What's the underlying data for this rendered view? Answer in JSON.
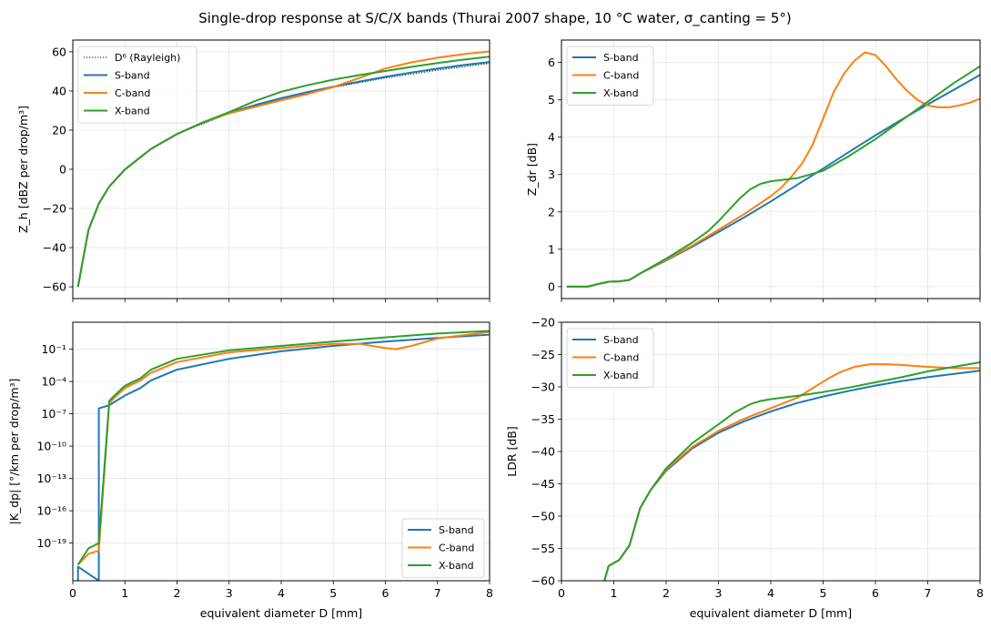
{
  "figure": {
    "title": "Single-drop response at S/C/X bands (Thurai 2007 shape, 10 °C water, σ_canting = 5°)"
  },
  "colors": {
    "S-band": "#1f77b4",
    "C-band": "#ff7f0e",
    "X-band": "#2ca02c",
    "rayleigh": "#000000",
    "grid": "#e6e6e6"
  },
  "chart_data": [
    {
      "id": "zh",
      "type": "line",
      "title": "",
      "xlabel": "",
      "ylabel": "Z_h [dBZ per drop/m³]",
      "xlim": [
        0,
        8
      ],
      "ylim": [
        -66,
        66
      ],
      "xticks": [
        0,
        1,
        2,
        3,
        4,
        5,
        6,
        7,
        8
      ],
      "xtick_labels_shown": false,
      "yticks": [
        -60,
        -40,
        -20,
        0,
        20,
        40,
        60
      ],
      "ytick_labels": [
        "−60",
        "−40",
        "−20",
        "0",
        "20",
        "40",
        "60"
      ],
      "grid": true,
      "legend": "top-left",
      "series": [
        {
          "name": "D⁶ (Rayleigh)",
          "style": "dotted",
          "x": [
            0.1,
            0.3,
            0.5,
            0.7,
            1,
            1.5,
            2,
            3,
            4,
            5,
            6,
            7,
            8
          ],
          "y": [
            -60,
            -31,
            -17.5,
            -8.8,
            -0.1,
            10.4,
            18,
            28.5,
            36,
            41.8,
            46.6,
            50.6,
            54.1
          ]
        },
        {
          "name": "S-band",
          "x": [
            0.1,
            0.3,
            0.5,
            0.7,
            1,
            1.5,
            2,
            2.5,
            3,
            3.5,
            4,
            4.5,
            5,
            5.5,
            6,
            6.5,
            7,
            7.5,
            8
          ],
          "y": [
            -60,
            -31,
            -17.5,
            -8.8,
            -0.1,
            10.4,
            18,
            24,
            28.8,
            32.8,
            36.3,
            39.4,
            42.2,
            44.8,
            47.2,
            49.4,
            51.4,
            53.2,
            54.8
          ]
        },
        {
          "name": "C-band",
          "x": [
            0.1,
            0.3,
            0.5,
            0.7,
            1,
            1.5,
            2,
            2.5,
            3,
            3.5,
            4,
            4.5,
            5,
            5.5,
            6,
            6.5,
            7,
            7.5,
            8
          ],
          "y": [
            -60,
            -31,
            -17.5,
            -8.8,
            -0.1,
            10.4,
            18,
            24,
            28.6,
            31.9,
            35.3,
            38.4,
            42,
            46.6,
            51.5,
            54.6,
            57,
            58.8,
            60.2
          ]
        },
        {
          "name": "X-band",
          "x": [
            0.1,
            0.3,
            0.5,
            0.7,
            1,
            1.5,
            2,
            2.5,
            3,
            3.5,
            4,
            4.5,
            5,
            5.5,
            6,
            6.5,
            7,
            7.5,
            8
          ],
          "y": [
            -60,
            -31,
            -17.5,
            -8.8,
            -0.1,
            10.4,
            18,
            24,
            29.2,
            34.9,
            39.6,
            42.9,
            45.8,
            48.1,
            50.2,
            52.3,
            54.3,
            56,
            57.5
          ]
        }
      ]
    },
    {
      "id": "zdr",
      "type": "line",
      "title": "",
      "xlabel": "",
      "ylabel": "Z_dr [dB]",
      "xlim": [
        0,
        8
      ],
      "ylim": [
        -0.32,
        6.6
      ],
      "xticks": [
        0,
        1,
        2,
        3,
        4,
        5,
        6,
        7,
        8
      ],
      "xtick_labels_shown": false,
      "yticks": [
        0,
        1,
        2,
        3,
        4,
        5,
        6
      ],
      "ytick_labels": [
        "0",
        "1",
        "2",
        "3",
        "4",
        "5",
        "6"
      ],
      "grid": true,
      "legend": "top-left",
      "series": [
        {
          "name": "S-band",
          "x": [
            0.1,
            0.3,
            0.5,
            0.7,
            0.9,
            1.1,
            1.3,
            1.5,
            2,
            2.5,
            3,
            3.5,
            4,
            4.5,
            5,
            5.5,
            6,
            6.5,
            7,
            7.5,
            8
          ],
          "y": [
            0,
            0,
            0,
            0.07,
            0.13,
            0.14,
            0.18,
            0.35,
            0.7,
            1.07,
            1.46,
            1.86,
            2.28,
            2.72,
            3.16,
            3.61,
            4.05,
            4.47,
            4.88,
            5.27,
            5.67
          ]
        },
        {
          "name": "C-band",
          "x": [
            0.1,
            0.3,
            0.5,
            0.7,
            0.9,
            1.1,
            1.3,
            1.5,
            2,
            2.5,
            3,
            3.5,
            4,
            4.2,
            4.4,
            4.6,
            4.8,
            5,
            5.2,
            5.4,
            5.6,
            5.8,
            6,
            6.2,
            6.4,
            6.6,
            6.8,
            7,
            7.2,
            7.4,
            7.6,
            7.8,
            8
          ],
          "y": [
            0,
            0,
            0,
            0.07,
            0.13,
            0.14,
            0.18,
            0.35,
            0.72,
            1.1,
            1.52,
            1.95,
            2.42,
            2.65,
            2.95,
            3.3,
            3.8,
            4.5,
            5.2,
            5.7,
            6.05,
            6.27,
            6.2,
            5.9,
            5.55,
            5.25,
            5.0,
            4.85,
            4.8,
            4.8,
            4.85,
            4.92,
            5.03
          ]
        },
        {
          "name": "X-band",
          "x": [
            0.1,
            0.3,
            0.5,
            0.7,
            0.9,
            1.1,
            1.3,
            1.5,
            2,
            2.5,
            2.8,
            3,
            3.2,
            3.4,
            3.6,
            3.8,
            4,
            4.5,
            5,
            5.5,
            6,
            6.5,
            7,
            7.5,
            8
          ],
          "y": [
            0,
            0,
            0,
            0.07,
            0.13,
            0.14,
            0.18,
            0.35,
            0.75,
            1.18,
            1.48,
            1.75,
            2.05,
            2.35,
            2.6,
            2.75,
            2.82,
            2.9,
            3.1,
            3.5,
            3.95,
            4.45,
            4.95,
            5.45,
            5.9
          ]
        }
      ]
    },
    {
      "id": "kdp",
      "type": "line",
      "title": "",
      "xlabel": "equivalent diameter D [mm]",
      "ylabel": "|K_dp| [°/km per drop/m³]",
      "xlim": [
        0,
        8
      ],
      "ylim_log10": [
        -22.5,
        1.5
      ],
      "yscale": "log",
      "xticks": [
        0,
        1,
        2,
        3,
        4,
        5,
        6,
        7,
        8
      ],
      "xtick_labels": [
        "0",
        "1",
        "2",
        "3",
        "4",
        "5",
        "6",
        "7",
        "8"
      ],
      "yticks_log10": [
        -19,
        -16,
        -13,
        -10,
        -7,
        -4,
        -1
      ],
      "ytick_labels": [
        "10⁻¹⁹",
        "10⁻¹⁶",
        "10⁻¹³",
        "10⁻¹⁰",
        "10⁻⁷",
        "10⁻⁴",
        "10⁻¹"
      ],
      "grid": true,
      "legend": "bottom-right",
      "series": [
        {
          "name": "S-band",
          "drops_to_bottom_at": [
            0.1,
            0.5
          ],
          "log10_x": [
            0.1,
            0.1,
            0.5,
            0.5,
            0.7,
            1,
            1.3,
            1.5,
            2,
            3,
            4,
            5,
            6,
            7,
            8
          ],
          "log10_y": [
            -22.5,
            -21.2,
            -22.5,
            -6.5,
            -6.2,
            -5.3,
            -4.6,
            -3.9,
            -2.9,
            -1.9,
            -1.2,
            -0.7,
            -0.3,
            0.05,
            0.35
          ]
        },
        {
          "name": "C-band",
          "log10_x": [
            0.1,
            0.3,
            0.5,
            0.7,
            0.8,
            1,
            1.3,
            1.5,
            2,
            3,
            4,
            5,
            5.5,
            6,
            6.2,
            6.5,
            7,
            8
          ],
          "log10_y": [
            -21,
            -20,
            -19.7,
            -6.0,
            -5.5,
            -4.6,
            -3.9,
            -3.2,
            -2.2,
            -1.3,
            -0.9,
            -0.5,
            -0.5,
            -0.9,
            -1.0,
            -0.7,
            0.0,
            0.6
          ]
        },
        {
          "name": "X-band",
          "log10_x": [
            0.1,
            0.3,
            0.5,
            0.7,
            0.8,
            1,
            1.3,
            1.5,
            2,
            3,
            4,
            5,
            6,
            7,
            8
          ],
          "log10_y": [
            -21,
            -19.5,
            -19.0,
            -5.8,
            -5.3,
            -4.4,
            -3.7,
            -2.9,
            -1.9,
            -1.1,
            -0.7,
            -0.3,
            0.1,
            0.45,
            0.7
          ]
        }
      ]
    },
    {
      "id": "ldr",
      "type": "line",
      "title": "",
      "xlabel": "equivalent diameter D [mm]",
      "ylabel": "LDR [dB]",
      "xlim": [
        0,
        8
      ],
      "ylim": [
        -60,
        -20
      ],
      "xticks": [
        0,
        1,
        2,
        3,
        4,
        5,
        6,
        7,
        8
      ],
      "xtick_labels": [
        "0",
        "1",
        "2",
        "3",
        "4",
        "5",
        "6",
        "7",
        "8"
      ],
      "yticks": [
        -60,
        -55,
        -50,
        -45,
        -40,
        -35,
        -30,
        -25,
        -20
      ],
      "ytick_labels": [
        "−60",
        "−55",
        "−50",
        "−45",
        "−40",
        "−35",
        "−30",
        "−25",
        "−20"
      ],
      "grid": true,
      "legend": "top-left",
      "series": [
        {
          "name": "S-band",
          "x": [
            0.82,
            0.9,
            1.1,
            1.3,
            1.5,
            1.7,
            2,
            2.5,
            3,
            3.5,
            4,
            4.5,
            5,
            5.5,
            6,
            6.5,
            7,
            7.5,
            8
          ],
          "y": [
            -60,
            -57.7,
            -56.8,
            -54.5,
            -48.8,
            -46,
            -43,
            -39.5,
            -37.1,
            -35.3,
            -33.8,
            -32.5,
            -31.5,
            -30.6,
            -29.8,
            -29.1,
            -28.5,
            -28,
            -27.5
          ]
        },
        {
          "name": "C-band",
          "x": [
            0.82,
            0.9,
            1.1,
            1.3,
            1.5,
            1.7,
            2,
            2.5,
            3,
            3.5,
            4,
            4.5,
            5,
            5.3,
            5.6,
            5.9,
            6.2,
            6.5,
            6.8,
            7,
            7.5,
            8
          ],
          "y": [
            -60,
            -57.7,
            -56.8,
            -54.5,
            -48.8,
            -46,
            -42.8,
            -39.3,
            -36.8,
            -34.9,
            -33.3,
            -31.7,
            -29.2,
            -27.8,
            -26.9,
            -26.5,
            -26.5,
            -26.6,
            -26.8,
            -26.9,
            -27.1,
            -27.1
          ]
        },
        {
          "name": "X-band",
          "x": [
            0.82,
            0.9,
            1.1,
            1.3,
            1.5,
            1.7,
            2,
            2.5,
            3,
            3.3,
            3.6,
            3.8,
            4,
            4.5,
            5,
            5.5,
            6,
            6.5,
            7,
            7.5,
            8
          ],
          "y": [
            -60,
            -57.7,
            -56.8,
            -54.5,
            -48.8,
            -46,
            -42.6,
            -38.7,
            -35.8,
            -34,
            -32.7,
            -32.2,
            -31.9,
            -31.4,
            -30.8,
            -30.1,
            -29.3,
            -28.5,
            -27.6,
            -26.9,
            -26.2
          ]
        }
      ]
    }
  ]
}
